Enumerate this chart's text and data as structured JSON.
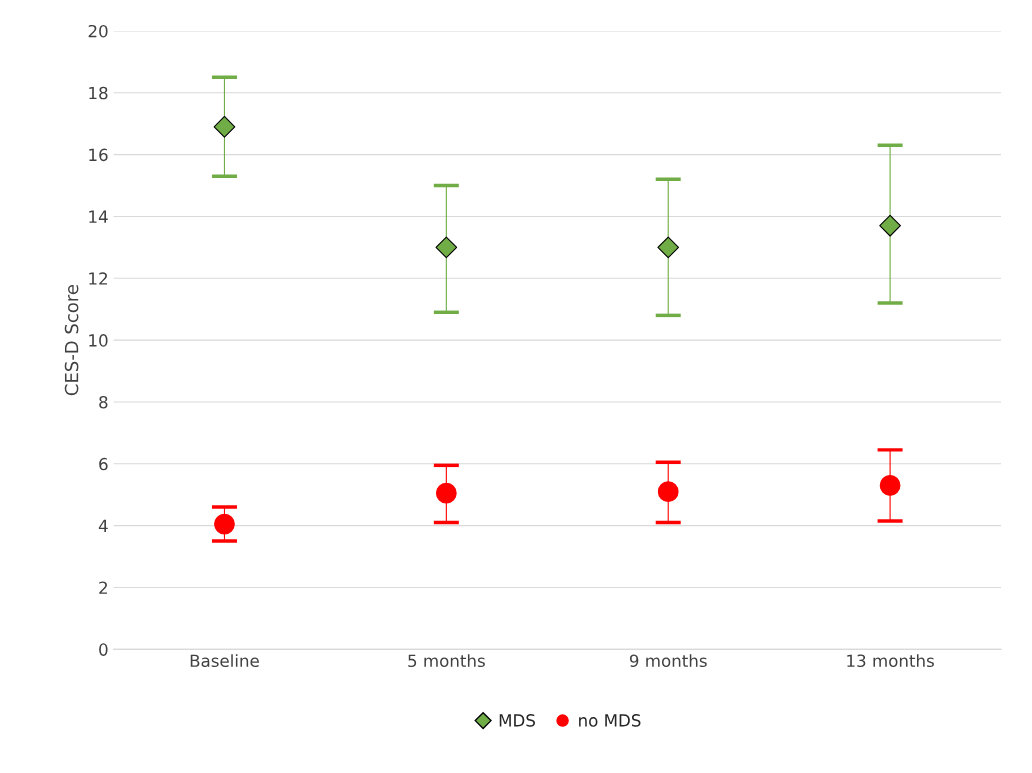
{
  "chart_data": {
    "type": "scatter",
    "ylabel": "CES-D Score",
    "categories": [
      "Baseline",
      "5 months",
      "9 months",
      "13 months"
    ],
    "series": [
      {
        "name": "MDS",
        "color": "#70ad47",
        "marker": "diamond",
        "values": [
          16.9,
          13.0,
          13.0,
          13.7
        ],
        "errors": [
          [
            15.3,
            18.5
          ],
          [
            10.9,
            15.0
          ],
          [
            10.8,
            15.2
          ],
          [
            11.2,
            16.3
          ]
        ]
      },
      {
        "name": "no MDS",
        "color": "#ff0000",
        "marker": "circle",
        "values": [
          4.05,
          5.05,
          5.1,
          5.3
        ],
        "errors": [
          [
            3.5,
            4.6
          ],
          [
            4.1,
            5.95
          ],
          [
            4.1,
            6.05
          ],
          [
            4.15,
            6.45
          ]
        ]
      }
    ],
    "ylim": [
      0,
      20
    ],
    "yticks": [
      0,
      2,
      4,
      6,
      8,
      10,
      12,
      14,
      16,
      18,
      20
    ],
    "grid": "y",
    "legend": "bottom"
  }
}
